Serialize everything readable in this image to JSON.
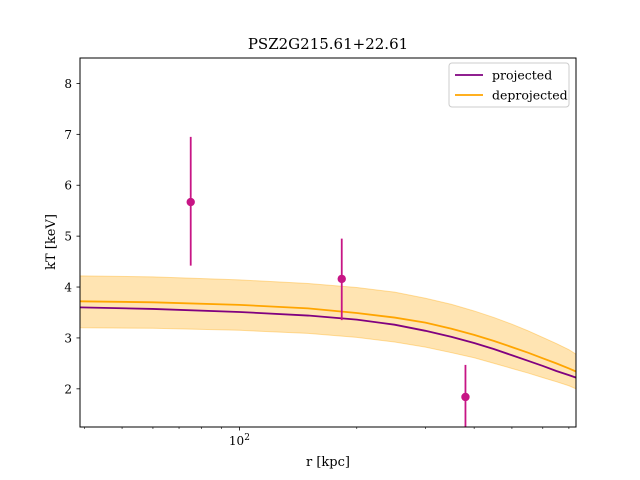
{
  "chart_data": {
    "type": "line",
    "title": "PSZ2G215.61+22.61",
    "xlabel": "r [kpc]",
    "ylabel": "kT [keV]",
    "x_scale": "log",
    "xlim": [
      39,
      730
    ],
    "ylim": [
      1.25,
      8.5
    ],
    "x_ticks": [
      {
        "value": 100,
        "label": "10^2"
      }
    ],
    "y_ticks": [
      2,
      3,
      4,
      5,
      6,
      7,
      8
    ],
    "legend_position": "top-right",
    "grid": false,
    "colors": {
      "projected": "#800080",
      "deprojected": "#FFA500",
      "band": "#FFA500",
      "points": "#C71585"
    },
    "series": [
      {
        "name": "projected",
        "x": [
          39,
          60,
          100,
          150,
          200,
          250,
          300,
          350,
          400,
          450,
          500,
          550,
          600,
          650,
          700,
          730
        ],
        "y": [
          3.6,
          3.57,
          3.51,
          3.44,
          3.36,
          3.26,
          3.14,
          3.02,
          2.9,
          2.78,
          2.66,
          2.55,
          2.45,
          2.35,
          2.27,
          2.22
        ]
      },
      {
        "name": "deprojected",
        "x": [
          39,
          60,
          100,
          150,
          200,
          250,
          300,
          350,
          400,
          450,
          500,
          550,
          600,
          650,
          700,
          730
        ],
        "y": [
          3.72,
          3.7,
          3.65,
          3.58,
          3.49,
          3.4,
          3.3,
          3.18,
          3.06,
          2.94,
          2.82,
          2.71,
          2.6,
          2.5,
          2.4,
          2.34
        ],
        "band_upper": [
          4.22,
          4.2,
          4.14,
          4.07,
          3.99,
          3.9,
          3.78,
          3.66,
          3.53,
          3.4,
          3.27,
          3.14,
          3.01,
          2.89,
          2.77,
          2.68
        ],
        "band_lower": [
          3.2,
          3.19,
          3.15,
          3.09,
          3.01,
          2.92,
          2.82,
          2.71,
          2.61,
          2.5,
          2.4,
          2.31,
          2.22,
          2.14,
          2.06,
          2.0
        ]
      }
    ],
    "points": [
      {
        "x": 75,
        "y": 5.67,
        "yerr_low": 4.42,
        "yerr_high": 6.95
      },
      {
        "x": 183,
        "y": 4.16,
        "yerr_low": 3.35,
        "yerr_high": 4.95
      },
      {
        "x": 380,
        "y": 1.84,
        "yerr_low": 1.25,
        "yerr_high": 2.47
      }
    ]
  }
}
